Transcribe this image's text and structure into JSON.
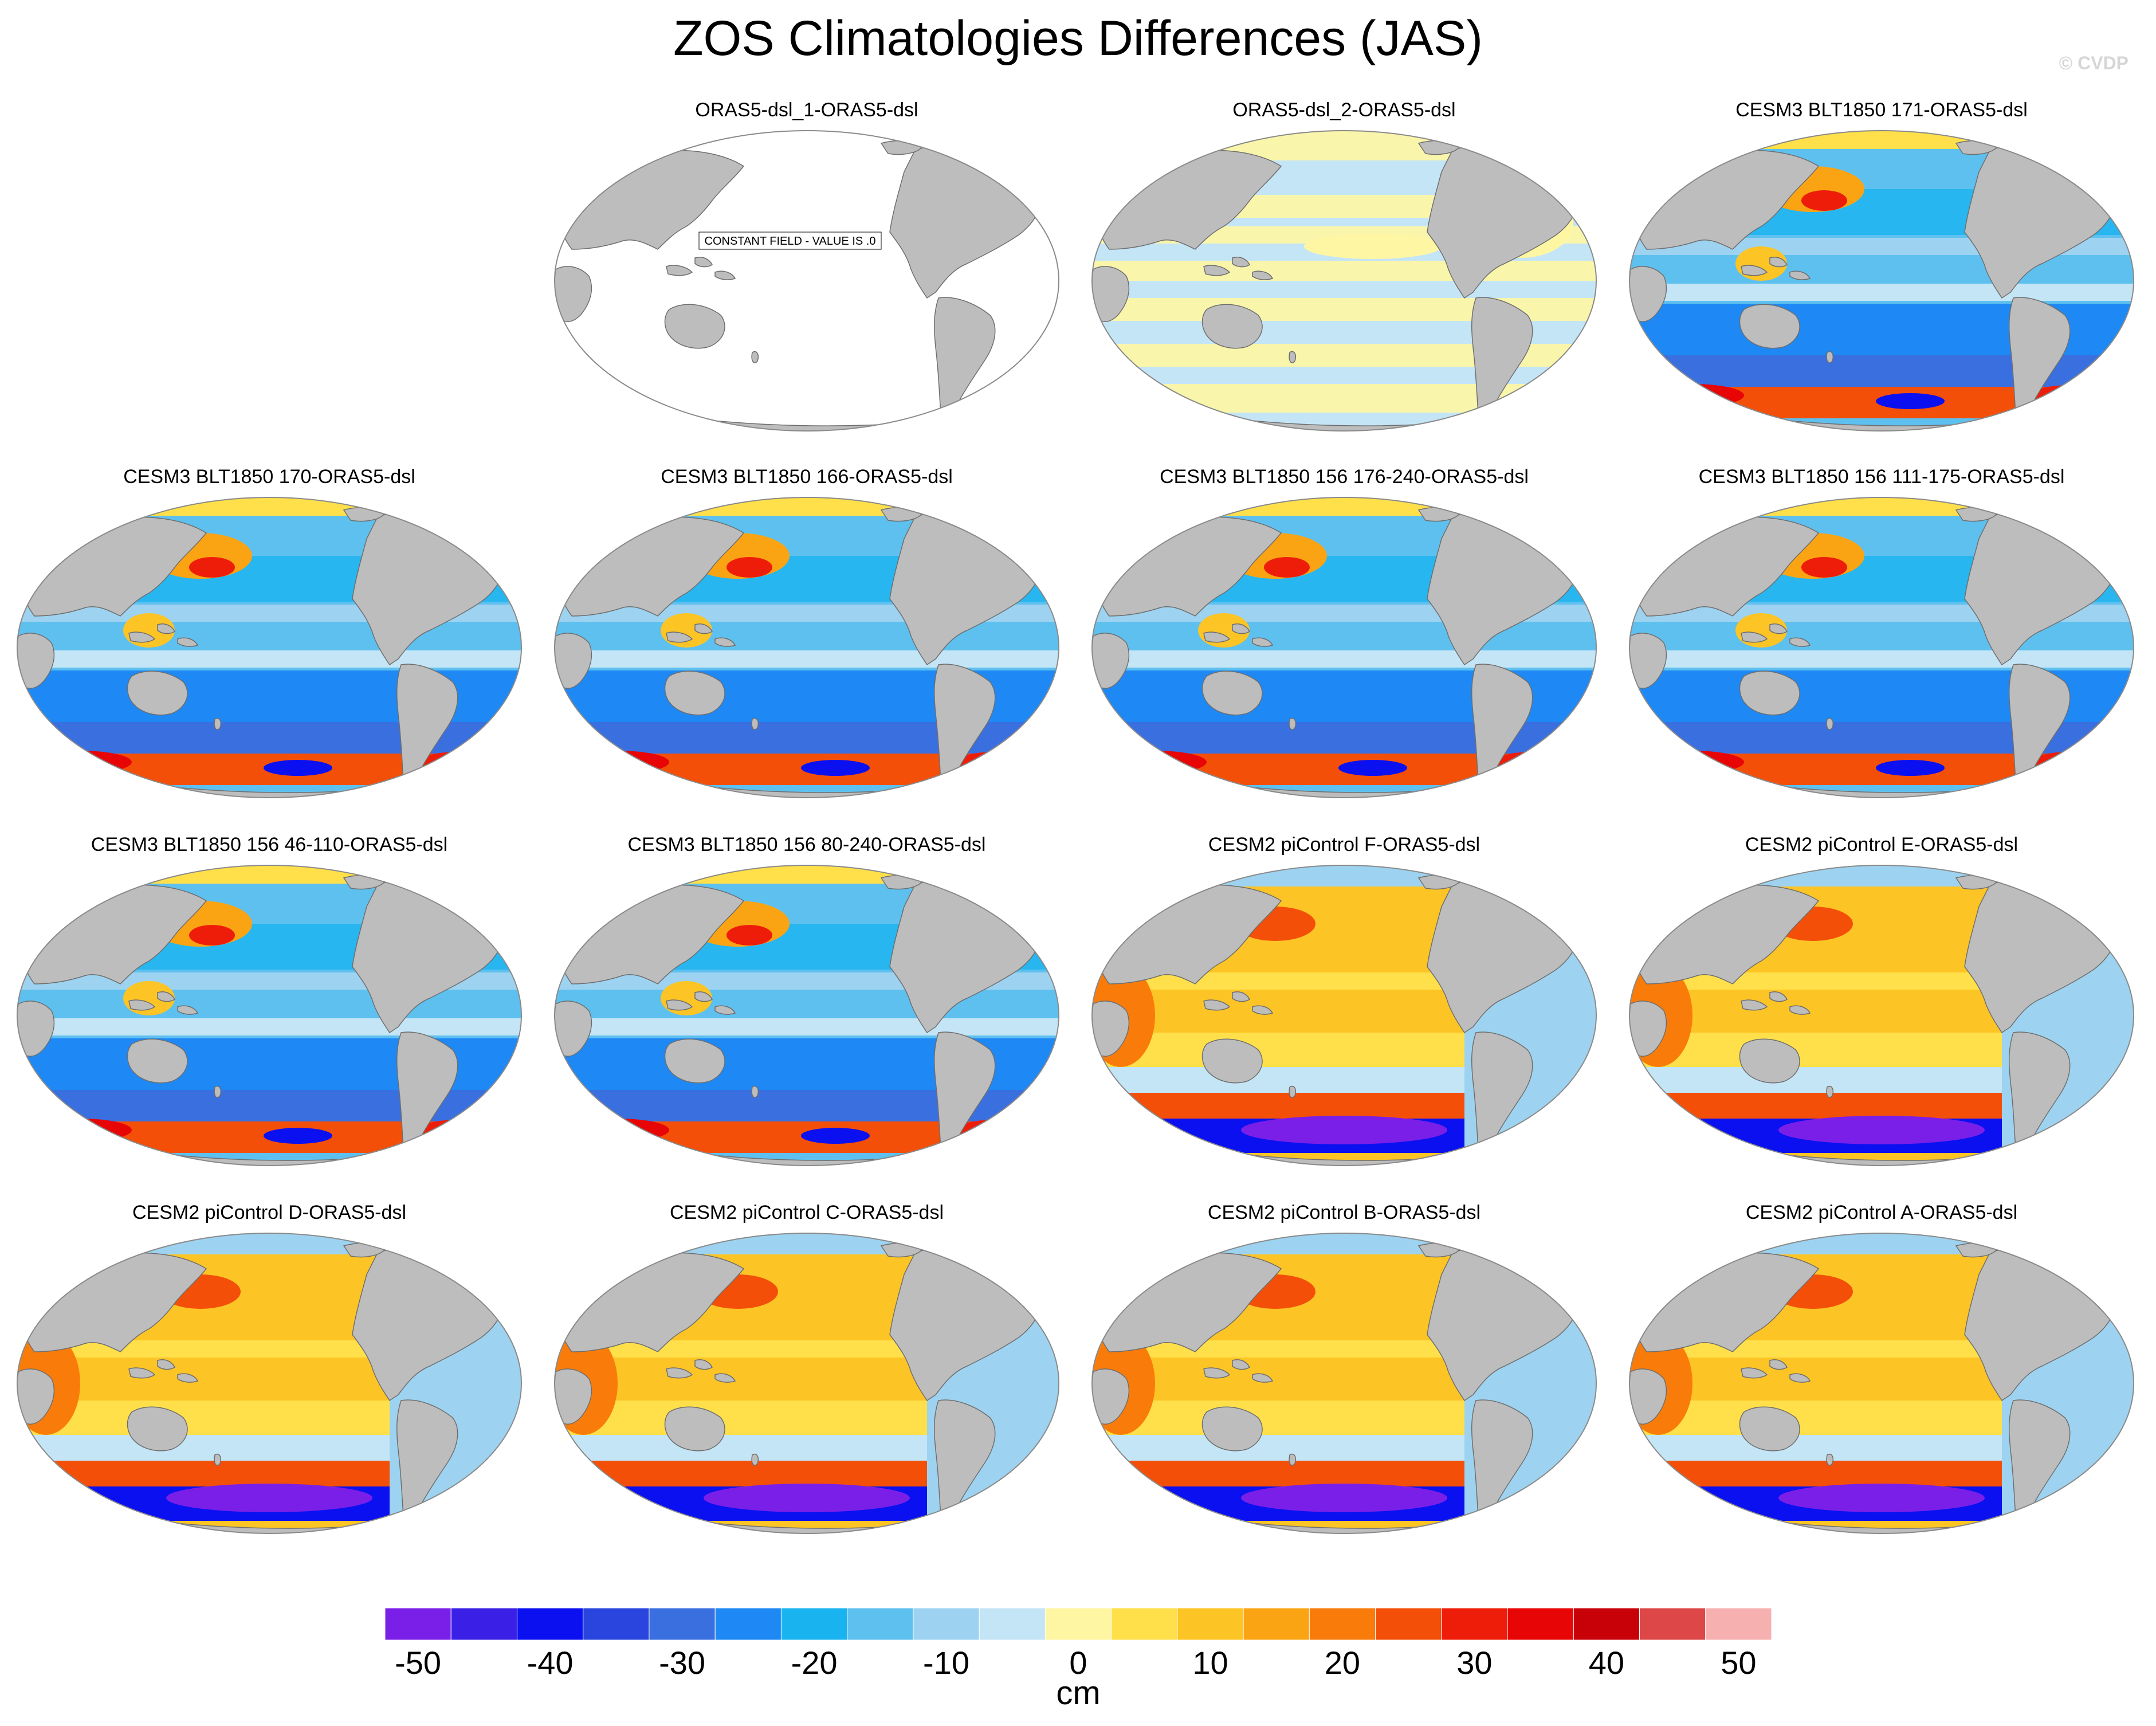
{
  "title": "ZOS Climatologies Differences (JAS)",
  "credit": "© CVDP",
  "colors": {
    "land": "#bdbdbd",
    "coast": "#6e6e6e",
    "ocean_white": "#ffffff",
    "palette": [
      "#7a1fe8",
      "#3a1fe6",
      "#0a10f0",
      "#2a45dd",
      "#3a6fe0",
      "#1e88f5",
      "#19b3f0",
      "#5ec0ee",
      "#9dd3f0",
      "#c4e5f6",
      "#fff6a3",
      "#ffe04a",
      "#fcc425",
      "#fba413",
      "#f97c0a",
      "#f44f08",
      "#ee1d09",
      "#e80505",
      "#c80008",
      "#dd4747",
      "#f7b0b0"
    ]
  },
  "panels": [
    {
      "label": "ORAS5-dsl_1-ORAS5-dsl",
      "pattern": "constant",
      "note": "CONSTANT FIELD - VALUE IS .0"
    },
    {
      "label": "ORAS5-dsl_2-ORAS5-dsl",
      "pattern": "small"
    },
    {
      "label": "CESM3 BLT1850 171-ORAS5-dsl",
      "pattern": "cesm3"
    },
    {
      "label": "CESM3 BLT1850 170-ORAS5-dsl",
      "pattern": "cesm3"
    },
    {
      "label": "CESM3 BLT1850 166-ORAS5-dsl",
      "pattern": "cesm3"
    },
    {
      "label": "CESM3 BLT1850 156 176-240-ORAS5-dsl",
      "pattern": "cesm3"
    },
    {
      "label": "CESM3 BLT1850 156 111-175-ORAS5-dsl",
      "pattern": "cesm3"
    },
    {
      "label": "CESM3 BLT1850 156 46-110-ORAS5-dsl",
      "pattern": "cesm3"
    },
    {
      "label": "CESM3 BLT1850 156 80-240-ORAS5-dsl",
      "pattern": "cesm3"
    },
    {
      "label": "CESM2 piControl F-ORAS5-dsl",
      "pattern": "cesm2"
    },
    {
      "label": "CESM2 piControl E-ORAS5-dsl",
      "pattern": "cesm2"
    },
    {
      "label": "CESM2 piControl D-ORAS5-dsl",
      "pattern": "cesm2"
    },
    {
      "label": "CESM2 piControl C-ORAS5-dsl",
      "pattern": "cesm2"
    },
    {
      "label": "CESM2 piControl B-ORAS5-dsl",
      "pattern": "cesm2"
    },
    {
      "label": "CESM2 piControl A-ORAS5-dsl",
      "pattern": "cesm2"
    }
  ],
  "colorbar": {
    "units": "cm",
    "labels": [
      "-50",
      "-40",
      "-30",
      "-20",
      "-10",
      "0",
      "10",
      "20",
      "30",
      "40",
      "50"
    ]
  }
}
